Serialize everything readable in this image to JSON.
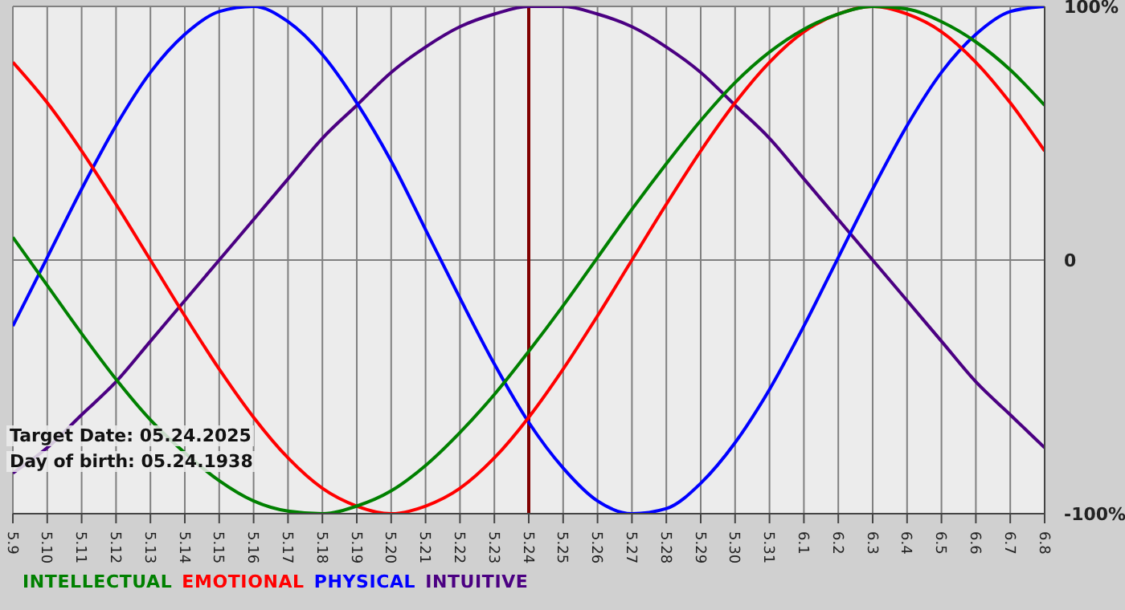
{
  "chart_data": {
    "type": "line",
    "categories": [
      "5.9",
      "5.10",
      "5.11",
      "5.12",
      "5.13",
      "5.14",
      "5.15",
      "5.16",
      "5.17",
      "5.18",
      "5.19",
      "5.20",
      "5.21",
      "5.22",
      "5.23",
      "5.24",
      "5.25",
      "5.26",
      "5.27",
      "5.28",
      "5.29",
      "5.30",
      "5.31",
      "6.1",
      "6.2",
      "6.3",
      "6.4",
      "6.5",
      "6.6",
      "6.7",
      "6.8"
    ],
    "series": [
      {
        "name": "INTELLECTUAL",
        "color": "#008000",
        "values": [
          9,
          -10,
          -29,
          -47,
          -63,
          -76,
          -87,
          -95,
          -99,
          -100,
          -97,
          -91,
          -81,
          -68,
          -53,
          -36,
          -18,
          1,
          20,
          38,
          55,
          70,
          82,
          91,
          97,
          100,
          99,
          94,
          86,
          75,
          61
        ]
      },
      {
        "name": "EMOTIONAL",
        "color": "#ff0000",
        "values": [
          78,
          62,
          43,
          22,
          0,
          -22,
          -43,
          -62,
          -78,
          -90,
          -97,
          -100,
          -97,
          -90,
          -78,
          -62,
          -43,
          -22,
          0,
          22,
          43,
          62,
          78,
          90,
          97,
          100,
          97,
          90,
          78,
          62,
          43
        ]
      },
      {
        "name": "PHYSICAL",
        "color": "#0000ff",
        "values": [
          -26,
          1,
          28,
          53,
          74,
          89,
          98,
          100,
          94,
          81,
          62,
          39,
          12,
          -15,
          -41,
          -64,
          -82,
          -95,
          -100,
          -98,
          -88,
          -72,
          -51,
          -26,
          1,
          28,
          53,
          74,
          89,
          98,
          100
        ]
      },
      {
        "name": "INTUITIVE",
        "color": "#4b0082",
        "values": [
          -84,
          -74,
          -61,
          -48,
          -32,
          -16,
          0,
          16,
          32,
          48,
          61,
          74,
          84,
          92,
          97,
          100,
          100,
          97,
          92,
          84,
          74,
          61,
          48,
          32,
          16,
          0,
          -16,
          -32,
          -48,
          -61,
          -74
        ]
      }
    ],
    "ylim": [
      -100,
      100
    ],
    "yticks": [
      {
        "value": 100,
        "label": "100%"
      },
      0,
      {
        "value": -100,
        "label": "-100%"
      }
    ],
    "grid": true,
    "legend": "bottom left",
    "marker": "none",
    "line_style": "solid",
    "ref_lines": [
      {
        "axis": "x",
        "value": "5.24",
        "color": "#800000"
      }
    ],
    "annotations": [
      "Target Date: 05.24.2025",
      "Day of birth: 05.24.1938"
    ]
  }
}
